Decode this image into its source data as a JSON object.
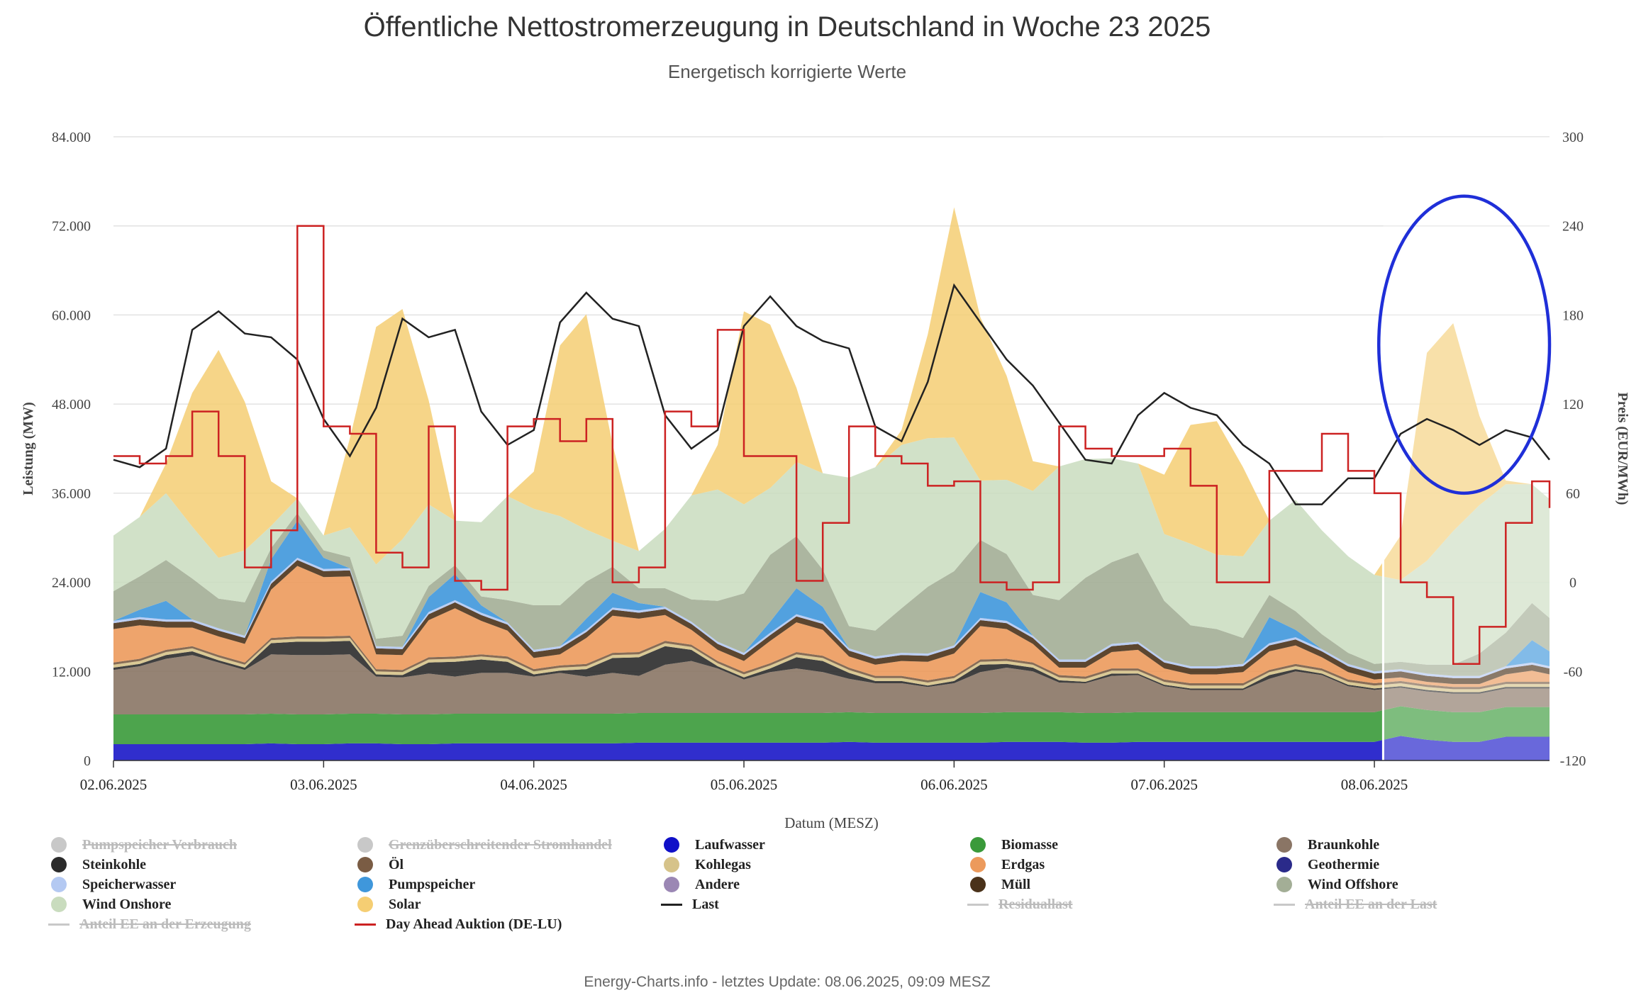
{
  "header": {
    "title": "Öffentliche Nettostromerzeugung in Deutschland in Woche 23 2025",
    "subtitle": "Energetisch korrigierte Werte"
  },
  "footer": {
    "text": "Energy-Charts.info - letztes Update: 08.06.2025, 09:09 MESZ"
  },
  "chart_data": {
    "type": "area",
    "title": "Öffentliche Nettostromerzeugung in Deutschland in Woche 23 2025",
    "subtitle": "Energetisch korrigierte Werte",
    "xlabel": "Datum (MESZ)",
    "ylabel": "Leistung (MW)",
    "y2label": "Preis (EUR/MWh)",
    "ylim": [
      0,
      84000
    ],
    "y2lim": [
      -120,
      300
    ],
    "y_ticks": [
      "0",
      "12.000",
      "24.000",
      "36.000",
      "48.000",
      "60.000",
      "72.000",
      "84.000"
    ],
    "y2_ticks": [
      "-120",
      "-60",
      "0",
      "60",
      "120",
      "180",
      "240",
      "300"
    ],
    "x_ticks": [
      "02.06.2025",
      "03.06.2025",
      "04.06.2025",
      "05.06.2025",
      "06.06.2025",
      "07.06.2025",
      "08.06.2025"
    ],
    "x_hours": [
      0,
      3,
      6,
      9,
      12,
      15,
      18,
      21,
      24,
      27,
      30,
      33,
      36,
      39,
      42,
      45,
      48,
      51,
      54,
      57,
      60,
      63,
      66,
      69,
      72,
      75,
      78,
      81,
      84,
      87,
      90,
      93,
      96,
      99,
      102,
      105,
      108,
      111,
      114,
      117,
      120,
      123,
      126,
      129,
      132,
      135,
      138,
      141,
      144,
      147,
      150,
      153,
      156,
      159,
      162,
      164
    ],
    "forecast_start_hour": 145,
    "grid": true,
    "legend_position": "bottom",
    "stack_order": [
      "Laufwasser",
      "Biomasse",
      "Braunkohle",
      "Steinkohle",
      "Kohlegas",
      "Öl",
      "Erdgas",
      "Müll",
      "Speicherwasser",
      "Pumpspeicher",
      "Wind Offshore",
      "Wind Onshore",
      "Solar"
    ],
    "series": [
      {
        "name": "Laufwasser",
        "type": "area",
        "color": "#1a17c8",
        "values": [
          2200,
          2200,
          2200,
          2200,
          2200,
          2200,
          2300,
          2200,
          2200,
          2300,
          2300,
          2200,
          2200,
          2300,
          2300,
          2300,
          2300,
          2300,
          2300,
          2300,
          2400,
          2400,
          2400,
          2400,
          2400,
          2400,
          2400,
          2400,
          2500,
          2400,
          2400,
          2400,
          2400,
          2400,
          2500,
          2500,
          2500,
          2400,
          2400,
          2500,
          2500,
          2500,
          2500,
          2500,
          2500,
          2500,
          2500,
          2500,
          2500,
          3300,
          2800,
          2500,
          2500,
          3200,
          3200,
          3200
        ]
      },
      {
        "name": "Biomasse",
        "type": "area",
        "color": "#3a9a3a",
        "values": [
          4000,
          4000,
          4000,
          4000,
          4000,
          4000,
          4000,
          4000,
          4000,
          4000,
          4000,
          4000,
          4000,
          4000,
          4000,
          4000,
          4000,
          4000,
          4000,
          4000,
          4000,
          4000,
          4000,
          4000,
          4000,
          4000,
          4000,
          4000,
          4000,
          4000,
          4000,
          4000,
          4000,
          4000,
          4000,
          4000,
          4000,
          4000,
          4000,
          4000,
          4000,
          4000,
          4000,
          4000,
          4000,
          4000,
          4000,
          4000,
          4000,
          4000,
          4000,
          4000,
          4000,
          4000,
          4000,
          4000
        ]
      },
      {
        "name": "Braunkohle",
        "type": "area",
        "color": "#8a7565",
        "values": [
          6000,
          6500,
          7500,
          8000,
          7000,
          6000,
          8000,
          8000,
          8000,
          8000,
          5000,
          5000,
          5500,
          5000,
          5500,
          5500,
          5000,
          5500,
          5000,
          5500,
          5000,
          6500,
          7000,
          6000,
          4500,
          5500,
          6000,
          5500,
          4500,
          4000,
          4000,
          3500,
          4000,
          5500,
          6000,
          5500,
          4000,
          4000,
          5000,
          5000,
          3500,
          3000,
          3000,
          3000,
          4500,
          5500,
          5000,
          3500,
          3000,
          2500,
          2500,
          2500,
          2500,
          2500,
          2500,
          2500
        ]
      },
      {
        "name": "Steinkohle",
        "type": "area",
        "color": "#2b2b2b",
        "values": [
          300,
          300,
          500,
          500,
          300,
          300,
          1500,
          1800,
          1800,
          1800,
          300,
          300,
          1500,
          2000,
          1800,
          1500,
          300,
          300,
          1000,
          2000,
          2500,
          2500,
          1500,
          300,
          300,
          500,
          1500,
          1500,
          800,
          300,
          300,
          200,
          300,
          1000,
          500,
          500,
          300,
          200,
          300,
          200,
          200,
          200,
          200,
          200,
          500,
          300,
          200,
          200,
          200,
          200,
          200,
          200,
          200,
          200,
          200,
          200
        ]
      },
      {
        "name": "Kohlegas",
        "type": "area",
        "color": "#d6c38a",
        "values": [
          400,
          400,
          400,
          400,
          400,
          400,
          400,
          400,
          400,
          400,
          400,
          400,
          400,
          400,
          400,
          400,
          400,
          400,
          400,
          400,
          400,
          400,
          400,
          400,
          400,
          400,
          400,
          400,
          400,
          400,
          400,
          400,
          400,
          400,
          400,
          400,
          400,
          400,
          400,
          400,
          400,
          400,
          400,
          400,
          400,
          400,
          400,
          400,
          400,
          400,
          400,
          400,
          400,
          400,
          400,
          400
        ]
      },
      {
        "name": "Öl",
        "type": "area",
        "color": "#7a5c44",
        "values": [
          300,
          300,
          300,
          300,
          300,
          300,
          300,
          300,
          300,
          300,
          300,
          300,
          300,
          300,
          300,
          300,
          300,
          300,
          300,
          300,
          300,
          300,
          300,
          300,
          300,
          300,
          300,
          300,
          300,
          300,
          300,
          300,
          300,
          300,
          300,
          300,
          300,
          300,
          300,
          300,
          300,
          300,
          300,
          300,
          300,
          300,
          300,
          300,
          300,
          300,
          300,
          300,
          300,
          300,
          300,
          300
        ]
      },
      {
        "name": "Erdgas",
        "type": "area",
        "color": "#ec9a5c",
        "values": [
          4500,
          4500,
          3000,
          2500,
          2500,
          2500,
          6500,
          9500,
          8000,
          8000,
          2000,
          2000,
          5000,
          6500,
          4500,
          3500,
          1500,
          1500,
          3500,
          5000,
          4500,
          3500,
          2000,
          1500,
          1500,
          3000,
          4000,
          3500,
          1500,
          1500,
          2000,
          2500,
          3000,
          4500,
          4000,
          2500,
          1000,
          1200,
          2200,
          2500,
          1500,
          1200,
          1200,
          1500,
          2500,
          2500,
          1500,
          1000,
          500,
          500,
          400,
          400,
          400,
          1000,
          1500,
          1000
        ]
      },
      {
        "name": "Müll",
        "type": "area",
        "color": "#4a321a",
        "values": [
          800,
          800,
          800,
          800,
          800,
          800,
          800,
          800,
          800,
          800,
          800,
          800,
          800,
          800,
          800,
          800,
          800,
          800,
          800,
          800,
          800,
          800,
          800,
          800,
          800,
          800,
          800,
          800,
          800,
          800,
          800,
          800,
          800,
          800,
          800,
          800,
          800,
          800,
          800,
          800,
          800,
          800,
          800,
          800,
          800,
          800,
          800,
          800,
          800,
          800,
          800,
          800,
          800,
          800,
          800,
          800
        ]
      },
      {
        "name": "Speicherwasser",
        "type": "area",
        "color": "#b4c9f2",
        "values": [
          300,
          300,
          300,
          300,
          300,
          300,
          300,
          300,
          300,
          300,
          300,
          300,
          300,
          300,
          300,
          300,
          300,
          300,
          300,
          300,
          300,
          300,
          300,
          300,
          300,
          300,
          300,
          300,
          300,
          300,
          300,
          300,
          300,
          300,
          300,
          300,
          300,
          300,
          300,
          300,
          300,
          300,
          300,
          300,
          300,
          300,
          300,
          300,
          300,
          300,
          300,
          300,
          300,
          300,
          300,
          300
        ]
      },
      {
        "name": "Pumpspeicher",
        "type": "area",
        "color": "#3f97db",
        "values": [
          0,
          1000,
          2500,
          0,
          0,
          0,
          3000,
          5000,
          1500,
          0,
          0,
          0,
          2000,
          3500,
          1000,
          0,
          0,
          0,
          1500,
          2000,
          1000,
          0,
          0,
          0,
          0,
          1500,
          3500,
          2000,
          0,
          0,
          0,
          0,
          0,
          3500,
          2500,
          0,
          0,
          0,
          0,
          0,
          0,
          0,
          0,
          0,
          3500,
          1000,
          0,
          0,
          0,
          0,
          0,
          0,
          0,
          0,
          3000,
          2000
        ]
      },
      {
        "name": "Wind Offshore",
        "type": "area",
        "color": "#a3ae96",
        "values": [
          4000,
          4500,
          5500,
          5500,
          4000,
          4500,
          1500,
          1000,
          1000,
          1500,
          1000,
          1500,
          1500,
          1200,
          1200,
          3000,
          6000,
          5500,
          5000,
          3500,
          2000,
          2500,
          3000,
          5500,
          8000,
          9000,
          7000,
          5000,
          3000,
          3500,
          6000,
          9000,
          10000,
          7000,
          6500,
          5500,
          8000,
          11000,
          11000,
          12000,
          8000,
          5500,
          5000,
          3500,
          3000,
          2500,
          2000,
          1500,
          1000,
          1000,
          1200,
          1500,
          3000,
          4500,
          5000,
          4500
        ]
      },
      {
        "name": "Wind Onshore",
        "type": "area",
        "color": "#c9dcbe",
        "values": [
          7500,
          8000,
          9000,
          7000,
          5500,
          7000,
          3000,
          2000,
          2000,
          4000,
          10000,
          13000,
          11000,
          6000,
          10000,
          14000,
          13000,
          12000,
          7000,
          3500,
          5000,
          8000,
          14000,
          15000,
          12000,
          9000,
          10000,
          13000,
          20000,
          22000,
          22000,
          20000,
          18000,
          8000,
          10000,
          14000,
          18000,
          16000,
          14000,
          12000,
          9000,
          11000,
          10000,
          11000,
          10000,
          15000,
          14000,
          13000,
          12000,
          11000,
          14000,
          18000,
          20000,
          20000,
          16000,
          16000
        ]
      },
      {
        "name": "Solar",
        "type": "area",
        "color": "#f5ce73",
        "values": [
          0,
          0,
          4000,
          18000,
          28000,
          20000,
          6000,
          0,
          0,
          12000,
          32000,
          31000,
          14000,
          0,
          0,
          0,
          5000,
          23000,
          29000,
          13000,
          0,
          0,
          0,
          6000,
          26000,
          22000,
          10000,
          0,
          0,
          0,
          2000,
          14000,
          31000,
          22000,
          14000,
          4000,
          0,
          0,
          0,
          0,
          8000,
          16000,
          18000,
          12000,
          0,
          0,
          0,
          0,
          0,
          6000,
          28000,
          28000,
          12000,
          500,
          0,
          0
        ]
      },
      {
        "name": "Last",
        "type": "line",
        "color": "#222222",
        "values": [
          40500,
          39500,
          42000,
          58000,
          60500,
          57500,
          57000,
          54000,
          46000,
          41000,
          47500,
          59500,
          57000,
          58000,
          47000,
          42500,
          44500,
          59000,
          63000,
          59500,
          58500,
          46500,
          42000,
          44500,
          58500,
          62500,
          58500,
          56500,
          55500,
          45000,
          43000,
          51000,
          64000,
          59000,
          54000,
          50500,
          45500,
          40500,
          40000,
          46500,
          49500,
          47500,
          46500,
          42500,
          40000,
          34500,
          34500,
          38000,
          38000,
          44000,
          46000,
          44500,
          42500,
          44500,
          43500,
          40500
        ]
      },
      {
        "name": "Day Ahead Auktion (DE-LU)",
        "type": "line",
        "axis": "y2",
        "color": "#cc2222",
        "values": [
          85,
          80,
          85,
          115,
          85,
          10,
          35,
          240,
          105,
          100,
          20,
          10,
          105,
          1,
          -5,
          105,
          110,
          95,
          110,
          0,
          10,
          115,
          105,
          170,
          85,
          85,
          1,
          40,
          105,
          85,
          80,
          65,
          68,
          0,
          -5,
          0,
          105,
          90,
          85,
          85,
          90,
          65,
          0,
          0,
          75,
          75,
          100,
          75,
          60,
          0,
          -10,
          -55,
          -30,
          40,
          68,
          50
        ]
      }
    ],
    "legend": [
      {
        "name": "Pumpspeicher Verbrauch",
        "symbol": "dot",
        "color": "#c8c8c8",
        "hidden": true
      },
      {
        "name": "Grenzüberschreitender Stromhandel",
        "symbol": "dot",
        "color": "#c8c8c8",
        "hidden": true
      },
      {
        "name": "Laufwasser",
        "symbol": "dot",
        "color": "#1010c8",
        "hidden": false
      },
      {
        "name": "Biomasse",
        "symbol": "dot",
        "color": "#3a9a3a",
        "hidden": false
      },
      {
        "name": "Braunkohle",
        "symbol": "dot",
        "color": "#8a7565",
        "hidden": false
      },
      {
        "name": "Steinkohle",
        "symbol": "dot",
        "color": "#2b2b2b",
        "hidden": false
      },
      {
        "name": "Öl",
        "symbol": "dot",
        "color": "#7a5c44",
        "hidden": false
      },
      {
        "name": "Kohlegas",
        "symbol": "dot",
        "color": "#d6c38a",
        "hidden": false
      },
      {
        "name": "Erdgas",
        "symbol": "dot",
        "color": "#ec9a5c",
        "hidden": false
      },
      {
        "name": "Geothermie",
        "symbol": "dot",
        "color": "#2a2a8a",
        "hidden": false
      },
      {
        "name": "Speicherwasser",
        "symbol": "dot",
        "color": "#b4c9f2",
        "hidden": false
      },
      {
        "name": "Pumpspeicher",
        "symbol": "dot",
        "color": "#3f97db",
        "hidden": false
      },
      {
        "name": "Andere",
        "symbol": "dot",
        "color": "#9b87b4",
        "hidden": false
      },
      {
        "name": "Müll",
        "symbol": "dot",
        "color": "#4a321a",
        "hidden": false
      },
      {
        "name": "Wind Offshore",
        "symbol": "dot",
        "color": "#a3ae96",
        "hidden": false
      },
      {
        "name": "Wind Onshore",
        "symbol": "dot",
        "color": "#c9dcbe",
        "hidden": false
      },
      {
        "name": "Solar",
        "symbol": "dot",
        "color": "#f5ce73",
        "hidden": false
      },
      {
        "name": "Last",
        "symbol": "line",
        "color": "#222222",
        "hidden": false
      },
      {
        "name": "Residuallast",
        "symbol": "line",
        "color": "#c8c8c8",
        "hidden": true
      },
      {
        "name": "Anteil EE an der Last",
        "symbol": "line",
        "color": "#c8c8c8",
        "hidden": true
      },
      {
        "name": "Anteil EE an der Erzeugung",
        "symbol": "line",
        "color": "#c8c8c8",
        "hidden": true
      },
      {
        "name": "Day Ahead Auktion (DE-LU)",
        "symbol": "line",
        "color": "#cc2222",
        "hidden": false
      }
    ],
    "highlight_ellipse": {
      "color": "#1f2fd8",
      "hours": [
        144.5,
        164
      ],
      "y_range": [
        36000,
        76000
      ]
    }
  }
}
